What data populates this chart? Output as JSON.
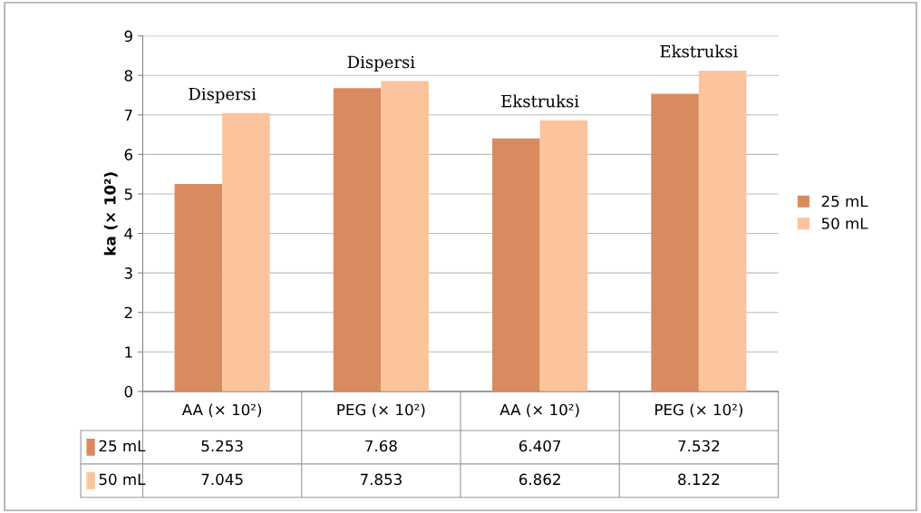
{
  "chart_data": {
    "type": "bar",
    "ylabel": "ka (× 10²)",
    "categories": [
      "AA (× 10²)",
      "PEG (× 10²)",
      "AA (× 10²)",
      "PEG (× 10²)"
    ],
    "series": [
      {
        "name": "25 mL",
        "color": "#d98b5f",
        "values": [
          5.253,
          7.68,
          6.407,
          7.532
        ]
      },
      {
        "name": "50 mL",
        "color": "#fbc49c",
        "values": [
          7.045,
          7.853,
          6.862,
          8.122
        ]
      }
    ],
    "annotations": [
      "Dispersi",
      "Dispersi",
      "Ekstruksi",
      "Ekstruksi"
    ],
    "ylim": [
      0,
      9
    ],
    "yticks": [
      0,
      1,
      2,
      3,
      4,
      5,
      6,
      7,
      8,
      9
    ],
    "grid": "y",
    "legend": "right",
    "data_labels": true
  }
}
